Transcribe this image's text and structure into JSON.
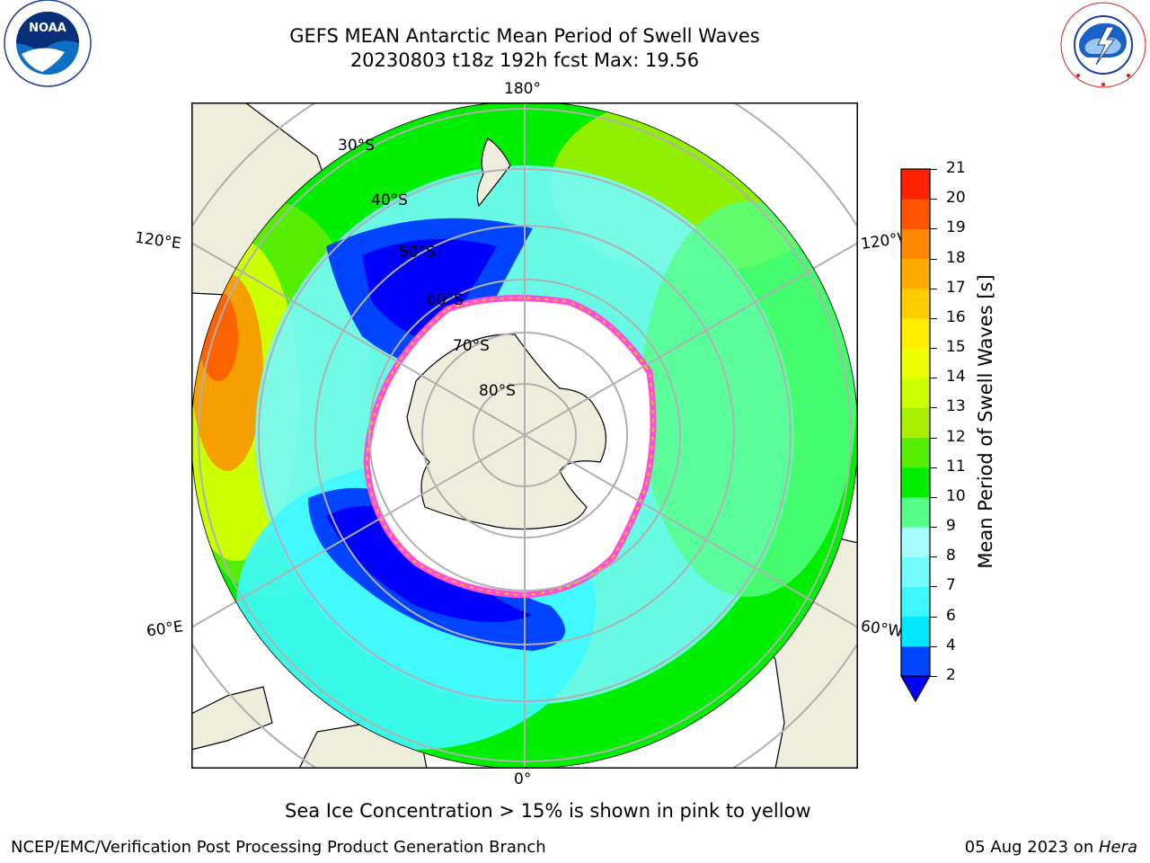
{
  "header": {
    "title_line1": "GEFS MEAN Antarctic Mean Period of Swell Waves",
    "title_line2": "20230803 t18z 192h fcst   Max: 19.56"
  },
  "logos": {
    "noaa_text": "NOAA",
    "noaa_ring_text": "NATIONAL OCEANIC AND ATMOSPHERIC ADMINISTRATION · U.S. DEPARTMENT OF COMMERCE",
    "nws_ring_text": "NATIONAL WEATHER SERVICE"
  },
  "map": {
    "projection": "south polar stereographic",
    "lon_labels": {
      "top": "180°",
      "bottom": "0°",
      "upper_left": "120°E",
      "upper_right": "120°W",
      "lower_left": "60°E",
      "lower_right": "60°W"
    },
    "lat_labels": [
      "30°S",
      "40°S",
      "50°S",
      "60°S",
      "70°S",
      "80°S"
    ],
    "colors": {
      "land": "#efeddb",
      "ice": "#ffffff",
      "ice_edge": "#ff4fd8",
      "grid": "#b0b0b0"
    }
  },
  "colorbar": {
    "label": "Mean Period of Swell Waves [s]",
    "ticks": [
      "2",
      "4",
      "6",
      "7",
      "8",
      "9",
      "10",
      "11",
      "12",
      "13",
      "14",
      "15",
      "16",
      "17",
      "18",
      "19",
      "20",
      "21"
    ],
    "colors": [
      "#0044ff",
      "#00e6ff",
      "#3ef8ff",
      "#74fbff",
      "#a6fcff",
      "#55ff88",
      "#00ee00",
      "#55ee00",
      "#aaee00",
      "#ccff00",
      "#eeff00",
      "#ffee00",
      "#ffcc00",
      "#ffaa00",
      "#ff8800",
      "#ff5500",
      "#ff2200"
    ],
    "under_color": "#0000ff",
    "over_color": "#ff0000"
  },
  "caption": "Sea Ice Concentration > 15% is shown in pink to yellow",
  "footer": {
    "left": "NCEP/EMC/Verification Post Processing Product Generation Branch",
    "right_date": "05 Aug 2023 on ",
    "right_machine": "Hera"
  }
}
